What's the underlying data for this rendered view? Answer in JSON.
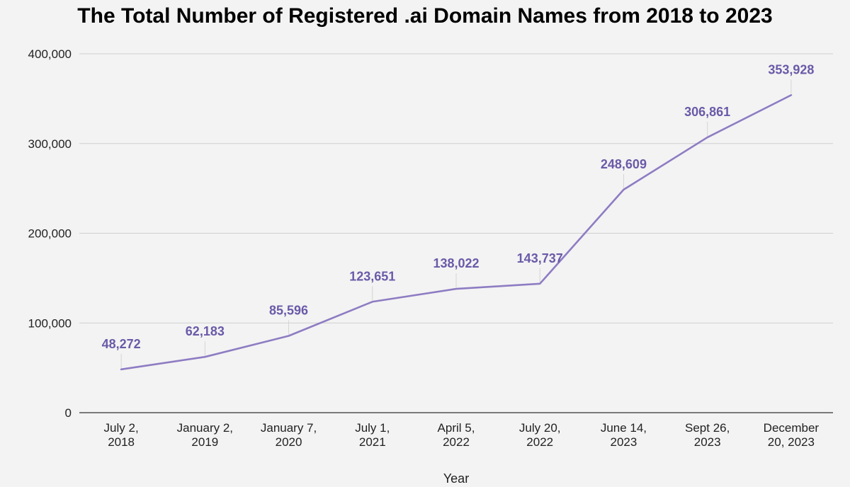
{
  "chart_data": {
    "type": "line",
    "title": "The Total Number of Registered .ai Domain Names from 2018 to 2023",
    "xlabel": "Year",
    "ylabel": "",
    "categories": [
      [
        "July 2,",
        "2018"
      ],
      [
        "January 2,",
        "2019"
      ],
      [
        "January 7,",
        "2020"
      ],
      [
        "July 1,",
        "2021"
      ],
      [
        "April 5,",
        "2022"
      ],
      [
        "July 20,",
        "2022"
      ],
      [
        "June 14,",
        "2023"
      ],
      [
        "Sept 26,",
        "2023"
      ],
      [
        "December",
        "20, 2023"
      ]
    ],
    "values": [
      48272,
      62183,
      85596,
      123651,
      138022,
      143737,
      248609,
      306861,
      353928
    ],
    "data_labels": [
      "48,272",
      "62,183",
      "85,596",
      "123,651",
      "138,022",
      "143,737",
      "248,609",
      "306,861",
      "353,928"
    ],
    "ylim": [
      0,
      400000
    ],
    "yticks": [
      0,
      100000,
      200000,
      300000,
      400000
    ],
    "ytick_labels": [
      "0",
      "100,000",
      "200,000",
      "300,000",
      "400,000"
    ],
    "grid": true,
    "legend": "none",
    "colors": {
      "line": "#8e7cc3",
      "data_label": "#6a5aa8"
    }
  }
}
